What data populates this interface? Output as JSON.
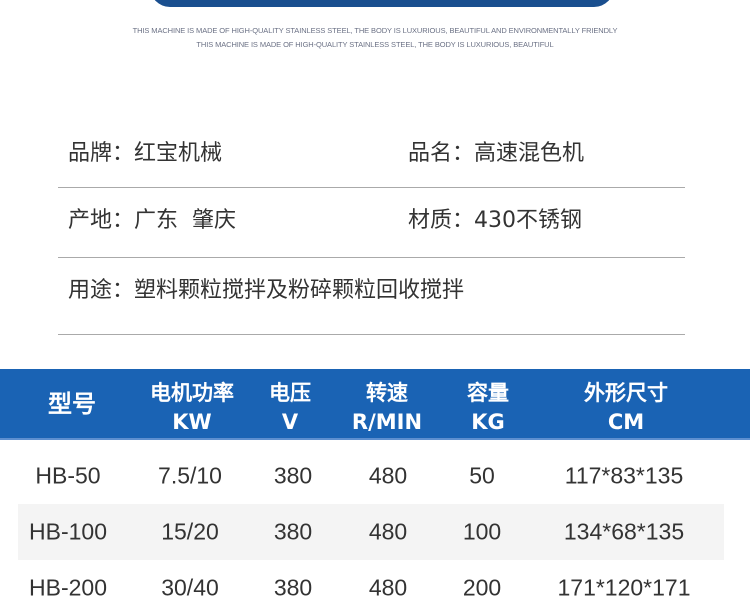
{
  "slogan": {
    "line1": "THIS MACHINE IS MADE OF HIGH-QUALITY STAINLESS STEEL, THE BODY IS LUXURIOUS, BEAUTIFUL AND ENVIRONMENTALLY FRIENDLY",
    "line2": "THIS MACHINE IS MADE OF HIGH-QUALITY STAINLESS STEEL, THE BODY IS LUXURIOUS, BEAUTIFUL"
  },
  "info": {
    "brand": "品牌：红宝机械",
    "product": "品名：高速混色机",
    "origin": "产地：广东  肇庆",
    "material": "材质：430不锈钢",
    "usage": "用途：塑料颗粒搅拌及粉碎颗粒回收搅拌"
  },
  "table": {
    "headers": [
      [
        "型号",
        ""
      ],
      [
        "电机功率",
        "KW"
      ],
      [
        "电压",
        "V"
      ],
      [
        "转速",
        "R/MIN"
      ],
      [
        "容量",
        "KG"
      ],
      [
        "外形尺寸",
        "CM"
      ]
    ],
    "rows": [
      [
        "HB-50",
        "7.5/10",
        "380",
        "480",
        "50",
        "117*83*135"
      ],
      [
        "HB-100",
        "15/20",
        "380",
        "480",
        "100",
        "134*68*135"
      ],
      [
        "HB-200",
        "30/40",
        "380",
        "480",
        "200",
        "171*120*171"
      ]
    ]
  },
  "colors": {
    "header": "#1a63b4",
    "topbar": "#1a4f8f"
  }
}
